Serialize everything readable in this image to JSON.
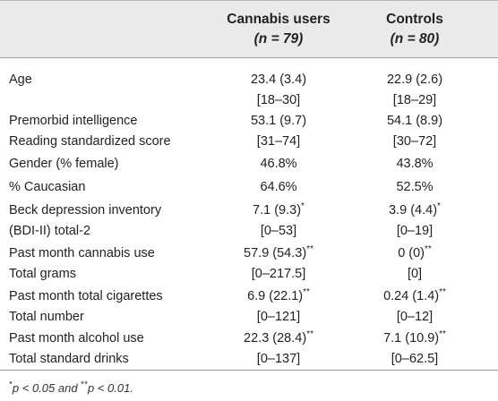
{
  "header": {
    "col1_title": "Cannabis users",
    "col1_n": "(n = 79)",
    "col2_title": "Controls",
    "col2_n": "(n = 80)"
  },
  "rows": [
    {
      "label1": "Age",
      "label2": "",
      "c1a": "23.4 (3.4)",
      "c1b": "[18–30]",
      "c2a": "22.9 (2.6)",
      "c2b": "[18–29]"
    },
    {
      "label1": "Premorbid intelligence",
      "label2": "Reading standardized score",
      "c1a": "53.1 (9.7)",
      "c1b": "[31–74]",
      "c2a": "54.1 (8.9)",
      "c2b": "[30–72]"
    },
    {
      "label1": "Gender (% female)",
      "c1a": "46.8%",
      "c2a": "43.8%"
    },
    {
      "label1": "% Caucasian",
      "c1a": "64.6%",
      "c2a": "52.5%"
    },
    {
      "label1": "Beck depression inventory",
      "label2": "(BDI-II) total-2",
      "c1a": "7.1 (9.3)",
      "c1a_sup": "*",
      "c1b": "[0–53]",
      "c2a": "3.9 (4.4)",
      "c2a_sup": "*",
      "c2b": "[0–19]"
    },
    {
      "label1": "Past month cannabis use",
      "label2": "Total grams",
      "c1a": "57.9 (54.3)",
      "c1a_sup": "**",
      "c1b": "[0–217.5]",
      "c2a": "0 (0)",
      "c2a_sup": "**",
      "c2b": "[0]"
    },
    {
      "label1": "Past month total cigarettes",
      "label2": "Total number",
      "c1a": "6.9 (22.1)",
      "c1a_sup": "**",
      "c1b": "[0–121]",
      "c2a": "0.24 (1.4)",
      "c2a_sup": "**",
      "c2b": "[0–12]"
    },
    {
      "label1": "Past month alcohol use",
      "label2": "Total standard drinks",
      "c1a": "22.3 (28.4)",
      "c1a_sup": "**",
      "c1b": "[0–137]",
      "c2a": "7.1 (10.9)",
      "c2a_sup": "**",
      "c2b": "[0–62.5]"
    }
  ],
  "footnote": {
    "part1": "*",
    "part2": "p < 0.05 and ",
    "part3": "**",
    "part4": "p < 0.01."
  }
}
